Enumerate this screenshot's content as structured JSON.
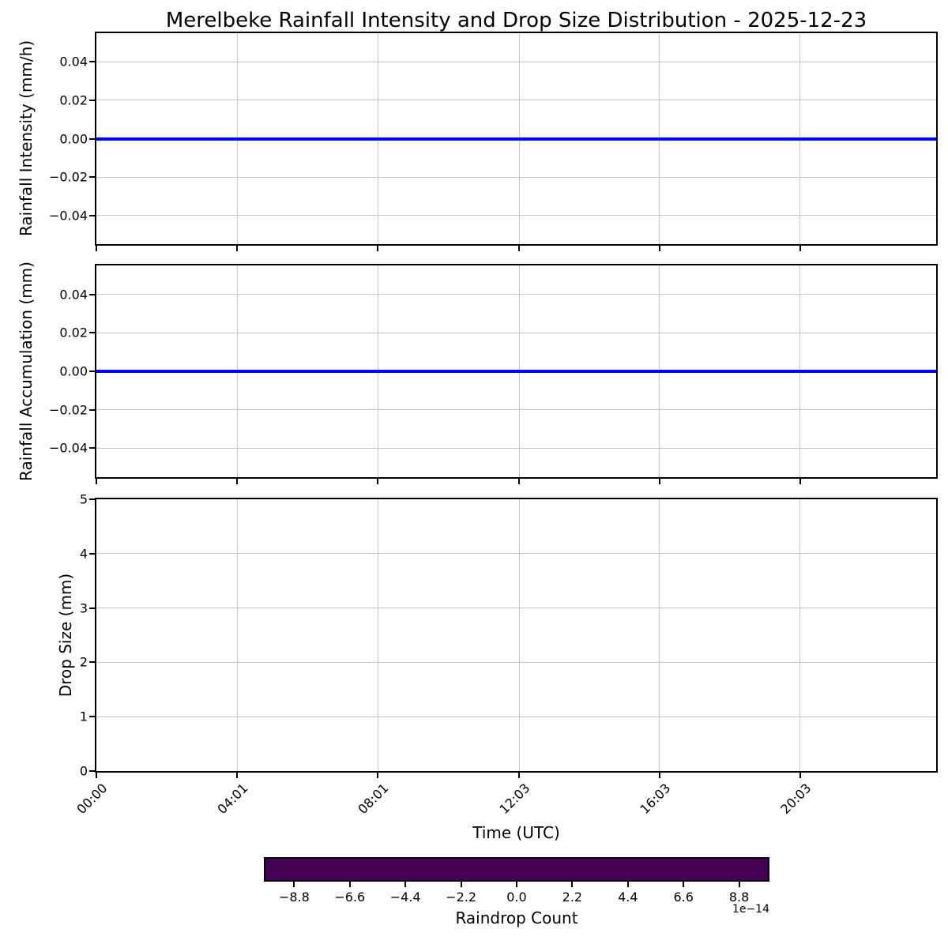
{
  "title": "Merelbeke Rainfall Intensity and Drop Size Distribution - 2025-12-23",
  "chart_data": [
    {
      "type": "line",
      "ylabel": "Rainfall Intensity (mm/h)",
      "ylim": [
        -0.055,
        0.055
      ],
      "yticks": {
        "values": [
          0.04,
          0.02,
          0,
          -0.02,
          -0.04
        ],
        "labels": [
          "0.04",
          "0.02",
          "0.00",
          "−0.02",
          "−0.04"
        ]
      },
      "grid": true,
      "legend": "none",
      "series": [
        {
          "name": "Rainfall Intensity",
          "color": "#0000ff",
          "constant_value": 0,
          "x_range_minutes": [
            0,
            1436
          ]
        }
      ]
    },
    {
      "type": "line",
      "ylabel": "Rainfall Accumulation (mm)",
      "ylim": [
        -0.055,
        0.055
      ],
      "yticks": {
        "values": [
          0.04,
          0.02,
          0,
          -0.02,
          -0.04
        ],
        "labels": [
          "0.04",
          "0.02",
          "0.00",
          "−0.02",
          "−0.04"
        ]
      },
      "grid": true,
      "legend": "none",
      "series": [
        {
          "name": "Rainfall Accumulation",
          "color": "#0000ff",
          "constant_value": 0,
          "x_range_minutes": [
            0,
            1436
          ]
        }
      ]
    },
    {
      "type": "heatmap",
      "ylabel": "Drop Size (mm)",
      "xlabel": "Time (UTC)",
      "ylim": [
        0,
        5
      ],
      "yticks": {
        "values": [
          0,
          1,
          2,
          3,
          4,
          5
        ],
        "labels": [
          "0",
          "1",
          "2",
          "3",
          "4",
          "5"
        ]
      },
      "xticks": {
        "labels": [
          "00:00",
          "04:01",
          "08:01",
          "12:03",
          "16:03",
          "20:03"
        ],
        "minutes": [
          0,
          241,
          481,
          723,
          963,
          1203
        ],
        "xlim_minutes": [
          0,
          1436
        ]
      },
      "grid": true,
      "values": []
    }
  ],
  "colorbar": {
    "label": "Raindrop Count",
    "offset_text": "1e−14",
    "tick_labels": [
      "−8.8",
      "−6.6",
      "−4.4",
      "−2.2",
      "0.0",
      "2.2",
      "4.4",
      "6.6",
      "8.8"
    ],
    "tick_values": [
      -8.8,
      -6.6,
      -4.4,
      -2.2,
      0,
      2.2,
      4.4,
      6.6,
      8.8
    ],
    "clim": [
      -10,
      10
    ],
    "scale_factor": "1e-14",
    "fill_color": "#440154"
  },
  "colors": {
    "line": "#0000ff",
    "grid": "#c6c6c6",
    "spine": "#000000",
    "background": "#ffffff"
  }
}
